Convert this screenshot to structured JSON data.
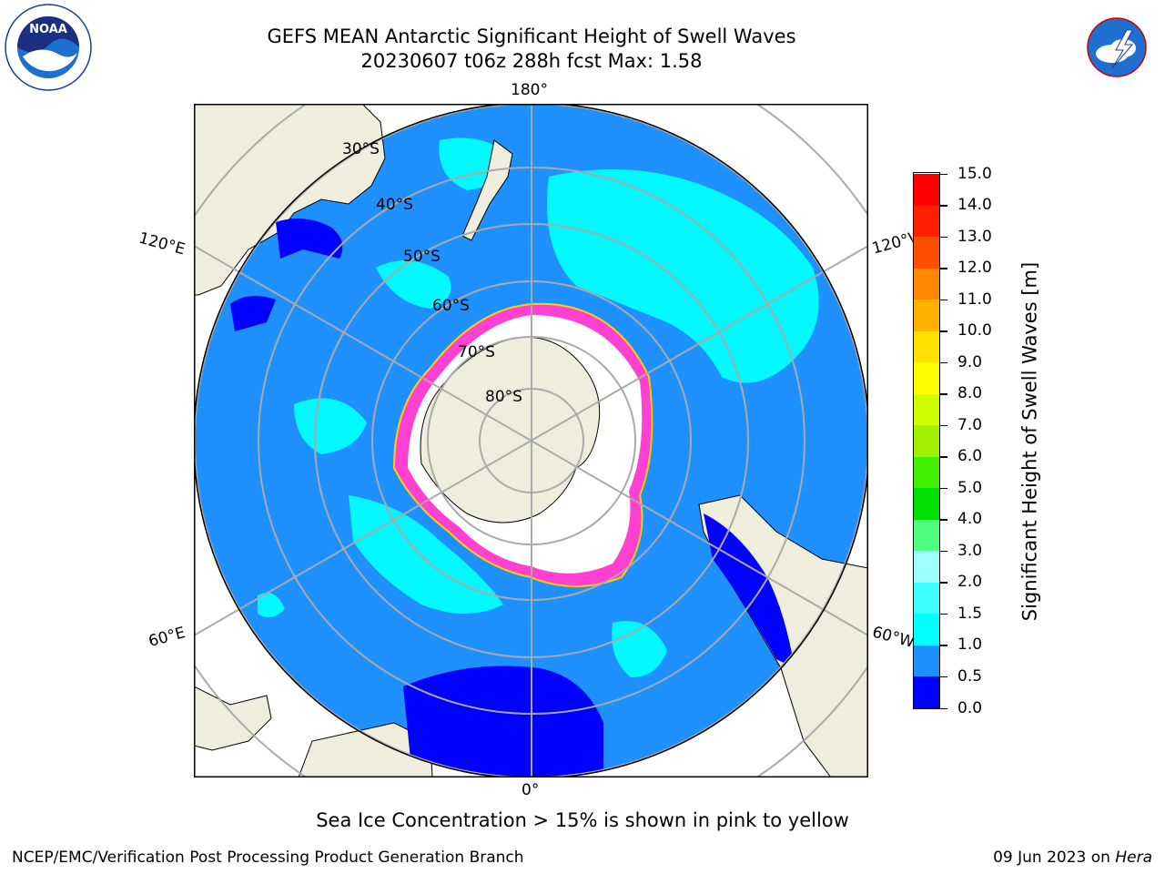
{
  "title_line1": "GEFS MEAN Antarctic Significant Height of Swell Waves",
  "title_line2": "20230607 t06z 288h fcst   Max: 1.58",
  "meridian_labels": {
    "top": "180°",
    "bottom": "0°",
    "upper_left": "120°E",
    "upper_right": "120°W",
    "lower_left": "60°E",
    "lower_right": "60°W"
  },
  "latitude_labels": [
    "30°S",
    "40°S",
    "50°S",
    "60°S",
    "70°S",
    "80°S"
  ],
  "colorbar": {
    "label": "Significant Height of Swell Waves [m]",
    "ticks": [
      "0.0",
      "0.5",
      "1.0",
      "1.5",
      "2.0",
      "3.0",
      "4.0",
      "5.0",
      "6.0",
      "7.0",
      "8.0",
      "9.0",
      "10.0",
      "11.0",
      "12.0",
      "13.0",
      "14.0",
      "15.0"
    ],
    "colors": [
      "#0000ff",
      "#1e90ff",
      "#00ffff",
      "#40ffff",
      "#a0ffff",
      "#50ff80",
      "#00e000",
      "#40f000",
      "#a0f000",
      "#d0ff00",
      "#ffff00",
      "#ffe000",
      "#ffb000",
      "#ff8800",
      "#ff5000",
      "#ff2000",
      "#ff0000"
    ]
  },
  "note": "Sea Ice Concentration > 15% is shown in pink to yellow",
  "footer_left": "NCEP/EMC/Verification Post Processing Product Generation Branch",
  "footer_date": "09 Jun 2023 on ",
  "footer_host": "Hera",
  "logos": {
    "left": "NOAA",
    "right": "NATIONAL WEATHER SERVICE"
  },
  "map_colors": {
    "land": "#efeedd",
    "ocean": "#1e90ff",
    "low": "#0000ff",
    "mid": "#00ffff",
    "ice": "#ff40d0"
  }
}
